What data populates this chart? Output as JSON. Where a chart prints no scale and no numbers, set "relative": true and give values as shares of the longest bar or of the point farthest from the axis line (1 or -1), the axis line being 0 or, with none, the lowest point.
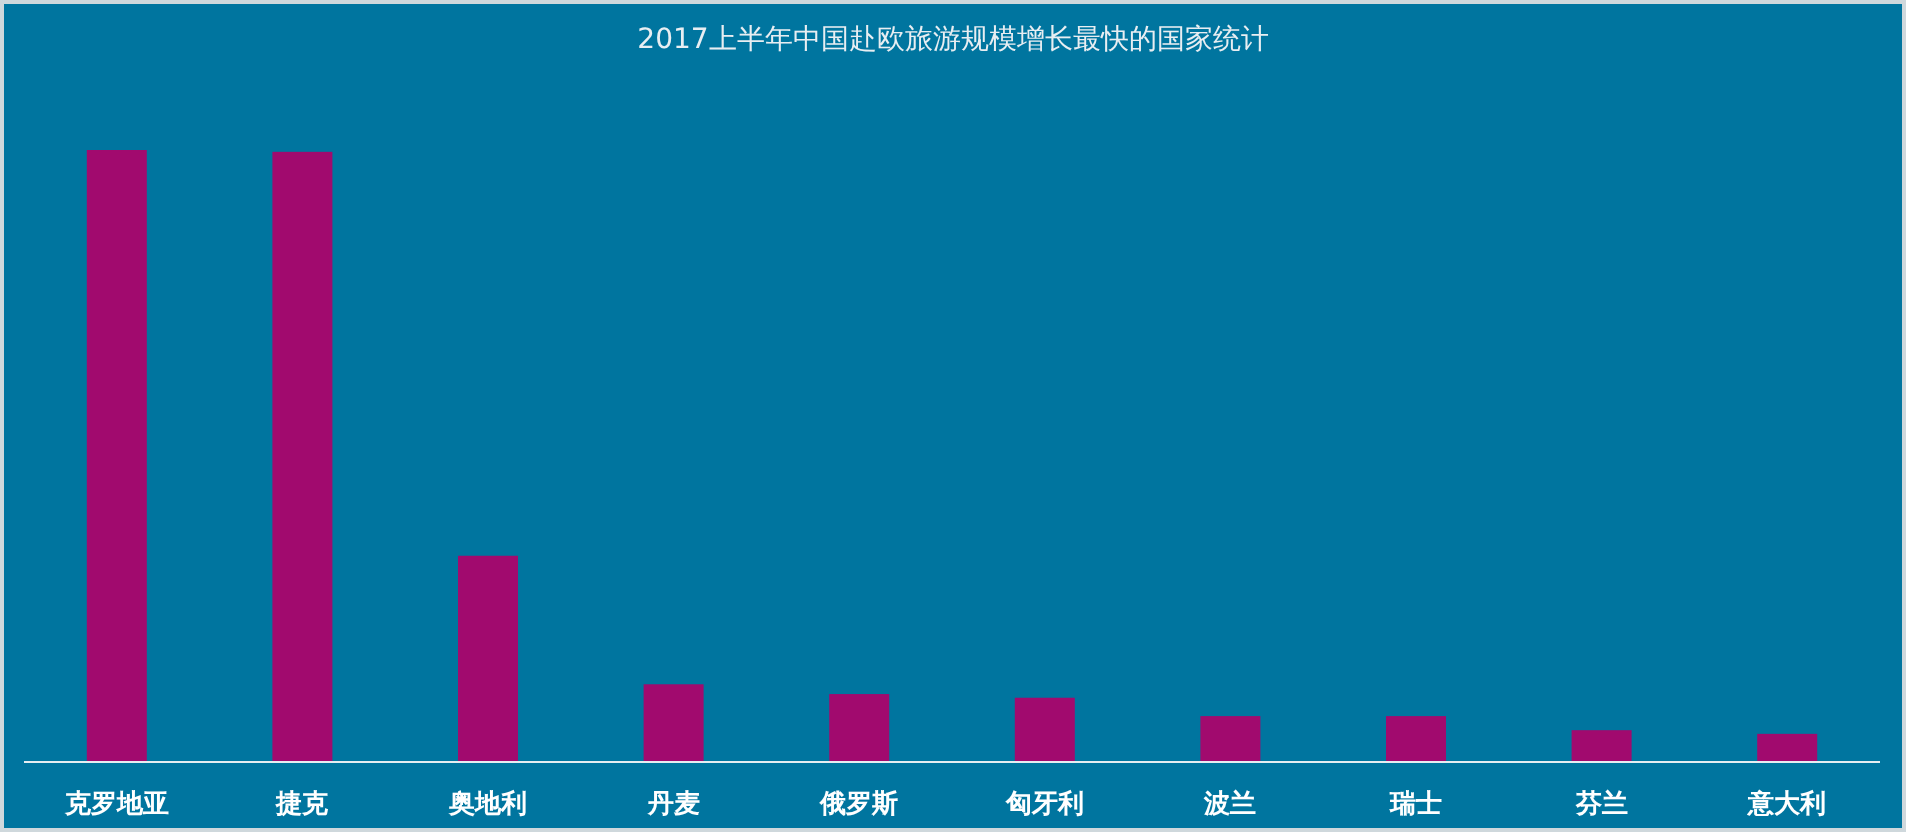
{
  "chart_data": {
    "type": "bar",
    "title": "2017上半年中国赴欧旅游规模增长最快的国家统计",
    "categories": [
      "克罗地亚",
      "捷克",
      "奥地利",
      "丹麦",
      "俄罗斯",
      "匈牙利",
      "波兰",
      "瑞士",
      "芬兰",
      "意大利"
    ],
    "values": [
      1,
      0.997,
      0.337,
      0.127,
      0.111,
      0.105,
      0.075,
      0.075,
      0.052,
      0.046
    ],
    "color": "#a10a6e",
    "relative": true
  }
}
